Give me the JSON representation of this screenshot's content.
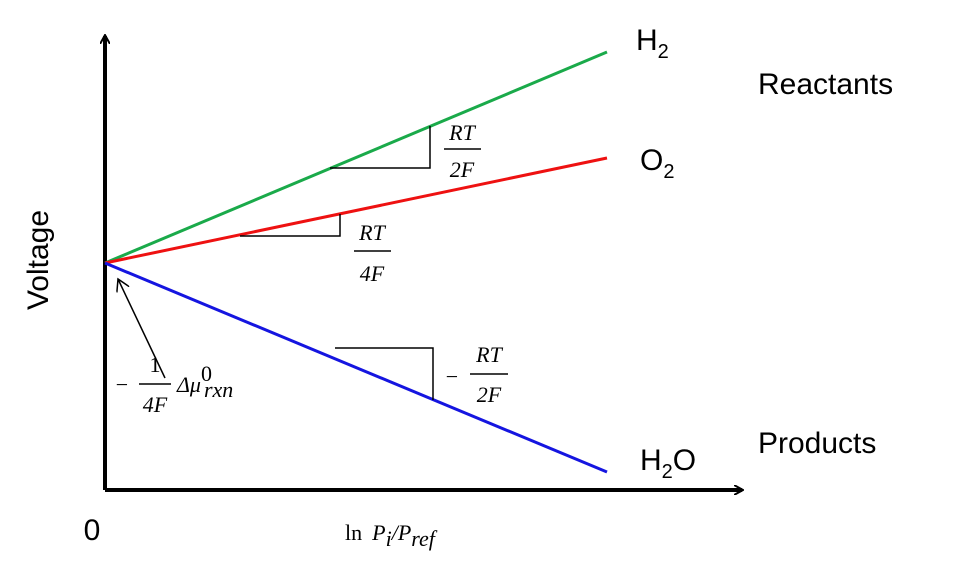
{
  "labels": {
    "h2": {
      "base": "H",
      "sub": "2"
    },
    "o2": {
      "base": "O",
      "sub": "2"
    },
    "h2o": {
      "base": "H",
      "sub": "2",
      "tail": "O"
    },
    "reactants": "Reactants",
    "products": "Products"
  },
  "axes": {
    "y_label": "Voltage",
    "origin": "0",
    "x_label": {
      "ln": "ln",
      "p": "P",
      "i": "i",
      "slash": "/",
      "p2": "P",
      "ref": "ref"
    }
  },
  "slopes": {
    "h2": {
      "num": "RT",
      "den": "2F"
    },
    "o2": {
      "num": "RT",
      "den": "4F"
    },
    "h2o": {
      "sign": "−",
      "num": "RT",
      "den": "2F"
    }
  },
  "intercept": {
    "sign": "−",
    "num": "1",
    "den": "4F",
    "delta": "Δμ",
    "sup": "0",
    "sub": "rxn"
  }
}
